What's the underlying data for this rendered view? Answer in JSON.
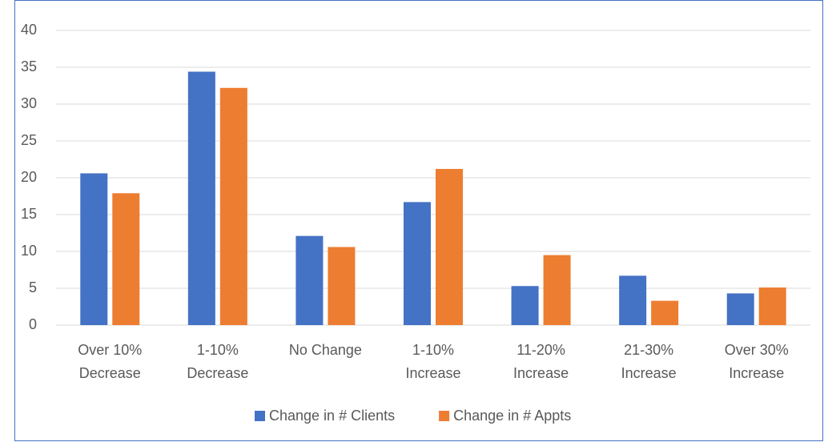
{
  "chart_data": {
    "type": "bar",
    "categories": [
      [
        "Over 10%",
        "Decrease"
      ],
      [
        "1-10%",
        "Decrease"
      ],
      [
        "No Change"
      ],
      [
        "1-10%",
        "Increase"
      ],
      [
        "11-20%",
        "Increase"
      ],
      [
        "21-30%",
        "Increase"
      ],
      [
        "Over 30%",
        "Increase"
      ]
    ],
    "series": [
      {
        "name": "Change in # Clients",
        "color": "#4472c4",
        "values": [
          20.6,
          34.4,
          12.1,
          16.7,
          5.3,
          6.7,
          4.3
        ]
      },
      {
        "name": "Change in # Appts",
        "color": "#ed7d31",
        "values": [
          17.9,
          32.2,
          10.6,
          21.2,
          9.5,
          3.3,
          5.1
        ]
      }
    ],
    "ylim": [
      0,
      40
    ],
    "yticks": [
      0,
      5,
      10,
      15,
      20,
      25,
      30,
      35,
      40
    ],
    "grid": true,
    "legend": "bottom"
  }
}
